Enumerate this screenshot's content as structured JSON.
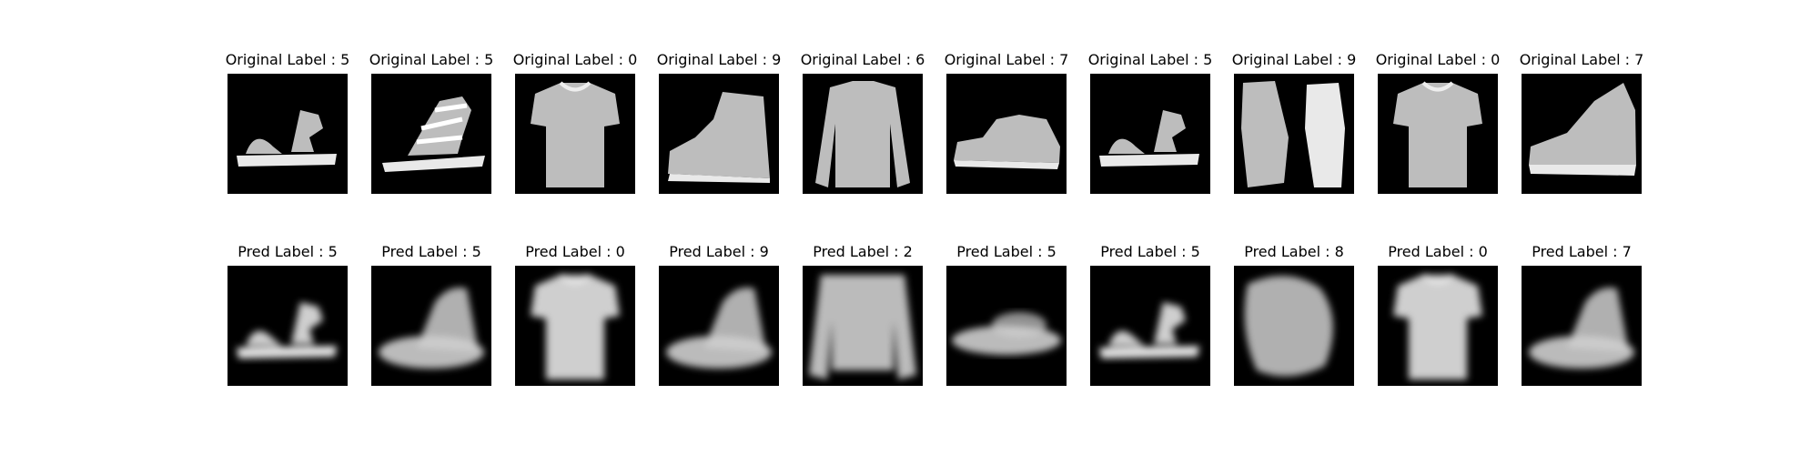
{
  "figure": {
    "rows": [
      {
        "row_name": "original",
        "items": [
          {
            "label": "Original Label : 5",
            "item": "sandal"
          },
          {
            "label": "Original Label : 5",
            "item": "strappy-sandal"
          },
          {
            "label": "Original Label : 0",
            "item": "tshirt"
          },
          {
            "label": "Original Label : 9",
            "item": "ankle-boot"
          },
          {
            "label": "Original Label : 6",
            "item": "long-sleeve-shirt"
          },
          {
            "label": "Original Label : 7",
            "item": "sneaker"
          },
          {
            "label": "Original Label : 5",
            "item": "sandal"
          },
          {
            "label": "Original Label : 9",
            "item": "boots-pair"
          },
          {
            "label": "Original Label : 0",
            "item": "tshirt"
          },
          {
            "label": "Original Label : 7",
            "item": "high-top-sneaker"
          }
        ]
      },
      {
        "row_name": "predicted",
        "items": [
          {
            "label": "Pred Label : 5",
            "item": "blurry-sandal"
          },
          {
            "label": "Pred Label : 5",
            "item": "blurry-boot"
          },
          {
            "label": "Pred Label : 0",
            "item": "blurry-tshirt"
          },
          {
            "label": "Pred Label : 9",
            "item": "blurry-boot"
          },
          {
            "label": "Pred Label : 2",
            "item": "blurry-pullover"
          },
          {
            "label": "Pred Label : 5",
            "item": "blurry-shoe"
          },
          {
            "label": "Pred Label : 5",
            "item": "blurry-sandal"
          },
          {
            "label": "Pred Label : 8",
            "item": "blurry-bag"
          },
          {
            "label": "Pred Label : 0",
            "item": "blurry-tshirt"
          },
          {
            "label": "Pred Label : 7",
            "item": "blurry-boot"
          }
        ]
      }
    ]
  },
  "colors": {
    "background": "#ffffff",
    "image_background": "#000000",
    "text": "#000000"
  }
}
